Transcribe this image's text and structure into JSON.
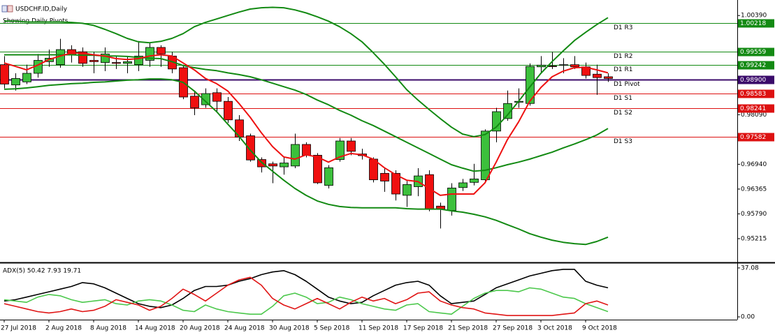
{
  "chart_data": [
    {
      "type": "candlestick",
      "title": "USDCHF.ID,Daily",
      "subtitle": "Showing Daily Pivots",
      "categories": [
        "27 Jul 2018",
        null,
        null,
        null,
        "2 Aug 2018",
        null,
        null,
        null,
        "8 Aug 2018",
        null,
        null,
        null,
        "14 Aug 2018",
        null,
        null,
        null,
        "20 Aug 2018",
        null,
        null,
        null,
        "24 Aug 2018",
        null,
        null,
        null,
        "30 Aug 2018",
        null,
        null,
        null,
        "5 Sep 2018",
        null,
        null,
        null,
        "11 Sep 2018",
        null,
        null,
        null,
        "17 Sep 2018",
        null,
        null,
        null,
        "21 Sep 2018",
        null,
        null,
        null,
        "27 Sep 2018",
        null,
        null,
        null,
        "3 Oct 2018",
        null,
        null,
        null,
        "9 Oct 2018",
        null,
        null
      ],
      "open": [
        0.9925,
        0.9878,
        0.9885,
        0.9905,
        0.9932,
        0.9925,
        0.996,
        0.9955,
        0.9935,
        0.993,
        0.993,
        0.9928,
        0.9925,
        0.9935,
        0.9965,
        0.9945,
        0.9918,
        0.9852,
        0.9832,
        0.986,
        0.984,
        0.9797,
        0.976,
        0.9705,
        0.9695,
        0.9688,
        0.969,
        0.974,
        0.9715,
        0.9645,
        0.9705,
        0.9748,
        0.9718,
        0.9706,
        0.9673,
        0.9673,
        0.9622,
        0.9642,
        0.967,
        0.9597,
        0.9587,
        0.964,
        0.9652,
        0.9658,
        0.9771,
        0.98,
        0.9838,
        0.9835,
        0.992,
        0.9922,
        0.9924,
        0.9925,
        0.992,
        0.9903,
        0.9897
      ],
      "high": [
        0.9945,
        0.9905,
        0.9925,
        0.995,
        0.996,
        0.9985,
        0.997,
        0.9965,
        0.9955,
        0.9965,
        0.9945,
        0.9945,
        0.998,
        0.9975,
        0.997,
        0.9955,
        0.9925,
        0.9865,
        0.987,
        0.987,
        0.985,
        0.9808,
        0.9765,
        0.971,
        0.97,
        0.9712,
        0.9765,
        0.9745,
        0.972,
        0.9692,
        0.9755,
        0.9755,
        0.973,
        0.971,
        0.9685,
        0.968,
        0.9655,
        0.9685,
        0.968,
        0.9605,
        0.965,
        0.966,
        0.9695,
        0.9775,
        0.9825,
        0.9865,
        0.987,
        0.9928,
        0.9945,
        0.9955,
        0.994,
        0.9945,
        0.993,
        0.9925,
        0.9905
      ],
      "low": [
        0.987,
        0.9865,
        0.988,
        0.9895,
        0.992,
        0.9918,
        0.993,
        0.992,
        0.9905,
        0.991,
        0.9915,
        0.9905,
        0.991,
        0.992,
        0.992,
        0.9905,
        0.9845,
        0.9808,
        0.9825,
        0.9815,
        0.979,
        0.9748,
        0.97,
        0.9675,
        0.965,
        0.967,
        0.9685,
        0.971,
        0.9648,
        0.9638,
        0.97,
        0.9715,
        0.9705,
        0.9652,
        0.963,
        0.961,
        0.9595,
        0.962,
        0.9585,
        0.9545,
        0.9575,
        0.9632,
        0.9645,
        0.965,
        0.9745,
        0.9795,
        0.9825,
        0.983,
        0.9905,
        0.9915,
        0.9905,
        0.9915,
        0.9893,
        0.9855,
        0.9885
      ],
      "close": [
        0.988,
        0.9893,
        0.9905,
        0.9935,
        0.994,
        0.996,
        0.9948,
        0.9928,
        0.9932,
        0.995,
        0.9928,
        0.9932,
        0.9945,
        0.9965,
        0.995,
        0.9915,
        0.985,
        0.9825,
        0.9858,
        0.984,
        0.9797,
        0.9757,
        0.9704,
        0.9688,
        0.969,
        0.9697,
        0.974,
        0.9715,
        0.9651,
        0.9686,
        0.9748,
        0.9724,
        0.9714,
        0.9658,
        0.9655,
        0.9625,
        0.9647,
        0.9667,
        0.959,
        0.959,
        0.9639,
        0.9651,
        0.966,
        0.9771,
        0.9816,
        0.9835,
        0.984,
        0.9921,
        0.9924,
        0.9921,
        0.9925,
        0.992,
        0.99,
        0.9895,
        0.9893
      ],
      "up_color": "#3cc03c",
      "down_color": "#f01010",
      "series": [
        {
          "color": "#138a13",
          "values": [
            1.0026,
            1.0026,
            1.0024,
            1.0024,
            1.0024,
            1.0024,
            1.0023,
            1.0021,
            1.0016,
            1.0007,
            0.9997,
            0.9986,
            0.9978,
            0.9976,
            0.9979,
            0.9986,
            0.9997,
            1.0013,
            1.0023,
            1.0031,
            1.0039,
            1.0047,
            1.0054,
            1.0057,
            1.0058,
            1.0057,
            1.0052,
            1.0045,
            1.0036,
            1.0026,
            1.0013,
            0.9997,
            0.9978,
            0.9953,
            0.9926,
            0.9897,
            0.9867,
            0.9843,
            0.9821,
            0.98,
            0.978,
            0.9764,
            0.9758,
            0.9763,
            0.978,
            0.9808,
            0.984,
            0.9873,
            0.9905,
            0.9932,
            0.9957,
            0.9981,
            1,
            1.0018,
            1.0034
          ]
        },
        {
          "color": "#138a13",
          "values": [
            0.9948,
            0.9948,
            0.9948,
            0.9948,
            0.9948,
            0.9948,
            0.9948,
            0.9947,
            0.9947,
            0.9945,
            0.9945,
            0.9944,
            0.9942,
            0.994,
            0.9939,
            0.9932,
            0.9923,
            0.9918,
            0.9914,
            0.9911,
            0.9906,
            0.9902,
            0.9897,
            0.989,
            0.9882,
            0.9874,
            0.9866,
            0.9856,
            0.9843,
            0.9832,
            0.9819,
            0.9808,
            0.9795,
            0.9784,
            0.9771,
            0.9758,
            0.9745,
            0.9732,
            0.9719,
            0.9706,
            0.9693,
            0.9685,
            0.9678,
            0.968,
            0.9686,
            0.9693,
            0.9699,
            0.9706,
            0.9714,
            0.9722,
            0.9732,
            0.9741,
            0.9751,
            0.9762,
            0.9777
          ]
        },
        {
          "color": "#138a13",
          "values": [
            0.9868,
            0.9869,
            0.9871,
            0.9874,
            0.9877,
            0.9879,
            0.9881,
            0.9882,
            0.9884,
            0.9885,
            0.9887,
            0.9889,
            0.989,
            0.9892,
            0.9892,
            0.989,
            0.9884,
            0.9864,
            0.984,
            0.9816,
            0.9787,
            0.9759,
            0.9727,
            0.9699,
            0.9678,
            0.9657,
            0.9638,
            0.9622,
            0.9609,
            0.9601,
            0.9596,
            0.9594,
            0.9593,
            0.9593,
            0.9593,
            0.9593,
            0.9591,
            0.959,
            0.959,
            0.959,
            0.9586,
            0.9583,
            0.9578,
            0.9572,
            0.9564,
            0.9554,
            0.9544,
            0.9533,
            0.9525,
            0.9518,
            0.9513,
            0.951,
            0.9508,
            0.9515,
            0.9525
          ]
        },
        {
          "color": "#ee1111",
          "values": [
            0.9929,
            0.9921,
            0.9913,
            0.9924,
            0.9937,
            0.9945,
            0.9952,
            0.9952,
            0.9948,
            0.9945,
            0.9939,
            0.9937,
            0.9939,
            0.9945,
            0.9948,
            0.9945,
            0.9929,
            0.9913,
            0.9893,
            0.9881,
            0.9864,
            0.9835,
            0.9803,
            0.9767,
            0.9735,
            0.9711,
            0.9706,
            0.9716,
            0.9711,
            0.9699,
            0.9711,
            0.9719,
            0.9716,
            0.9706,
            0.9686,
            0.967,
            0.9657,
            0.9654,
            0.9638,
            0.9622,
            0.9625,
            0.9625,
            0.9625,
            0.9651,
            0.9699,
            0.9751,
            0.9792,
            0.984,
            0.9872,
            0.9897,
            0.991,
            0.9918,
            0.9919,
            0.9913,
            0.9906
          ]
        }
      ],
      "pivots": [
        {
          "name": "D1 R3",
          "value": 1.00218,
          "color": "#138a13"
        },
        {
          "name": "D1 R2",
          "value": 0.99559,
          "color": "#138a13"
        },
        {
          "name": "D1 R1",
          "value": 0.99242,
          "color": "#138a13"
        },
        {
          "name": "D1 Pivot",
          "value": 0.989,
          "label": "0.98900",
          "color": "#3a0a6a"
        },
        {
          "name": "D1 S1",
          "value": 0.98583,
          "color": "#dd1111"
        },
        {
          "name": "D1 S2",
          "value": 0.98241,
          "color": "#dd1111"
        },
        {
          "name": "D1 S3",
          "value": 0.97582,
          "color": "#dd1111"
        }
      ],
      "ylim": [
        0.9468,
        1.0075
      ],
      "yticks": [
        {
          "value": 1.0039,
          "label": "1.00390"
        },
        {
          "value": 0.9809,
          "label": "0.98090"
        },
        {
          "value": 0.9694,
          "label": "0.96940"
        },
        0.96365,
        {
          "value": 0.9579,
          "label": "0.95790"
        },
        0.95215
      ]
    },
    {
      "type": "line",
      "title": "ADX(5) 50.42 7.93 19.71",
      "series": [
        {
          "color": "#000000",
          "values": [
            12,
            13,
            15,
            17,
            19,
            21,
            23,
            26,
            25,
            22,
            18,
            14,
            10,
            8,
            7,
            9,
            14,
            20,
            23,
            23,
            24,
            27,
            29,
            32,
            34,
            35,
            32,
            27,
            21,
            15,
            12,
            10,
            11,
            16,
            20,
            24,
            26,
            27,
            24,
            16,
            10,
            11,
            12,
            17,
            22,
            25,
            28,
            31,
            33,
            35,
            36,
            36,
            27,
            24,
            22
          ]
        },
        {
          "color": "#4cc84c",
          "values": [
            13,
            12,
            11,
            15,
            17,
            16,
            13,
            11,
            12,
            13,
            10,
            9,
            12,
            13,
            12,
            9,
            5,
            4,
            9,
            6,
            4,
            3,
            2,
            2,
            8,
            16,
            18,
            15,
            10,
            11,
            15,
            13,
            10,
            8,
            6,
            5,
            9,
            10,
            4,
            3,
            2,
            8,
            14,
            18,
            20,
            20,
            19,
            22,
            21,
            18,
            15,
            14,
            10,
            7,
            4
          ]
        },
        {
          "color": "#e01515",
          "values": [
            10,
            8,
            6,
            4,
            3,
            4,
            6,
            4,
            5,
            8,
            13,
            11,
            9,
            5,
            8,
            14,
            21,
            17,
            12,
            18,
            24,
            28,
            30,
            24,
            14,
            9,
            6,
            10,
            14,
            10,
            6,
            11,
            15,
            12,
            14,
            10,
            13,
            18,
            19,
            12,
            9,
            7,
            6,
            3,
            2,
            1,
            1,
            1,
            1,
            1,
            2,
            3,
            10,
            12,
            9
          ]
        }
      ],
      "ylim": [
        -2.1,
        40.2
      ],
      "yticks": [
        {
          "value": 37.08,
          "label": "37.08"
        },
        {
          "value": 0,
          "label": "0.00"
        }
      ]
    }
  ]
}
